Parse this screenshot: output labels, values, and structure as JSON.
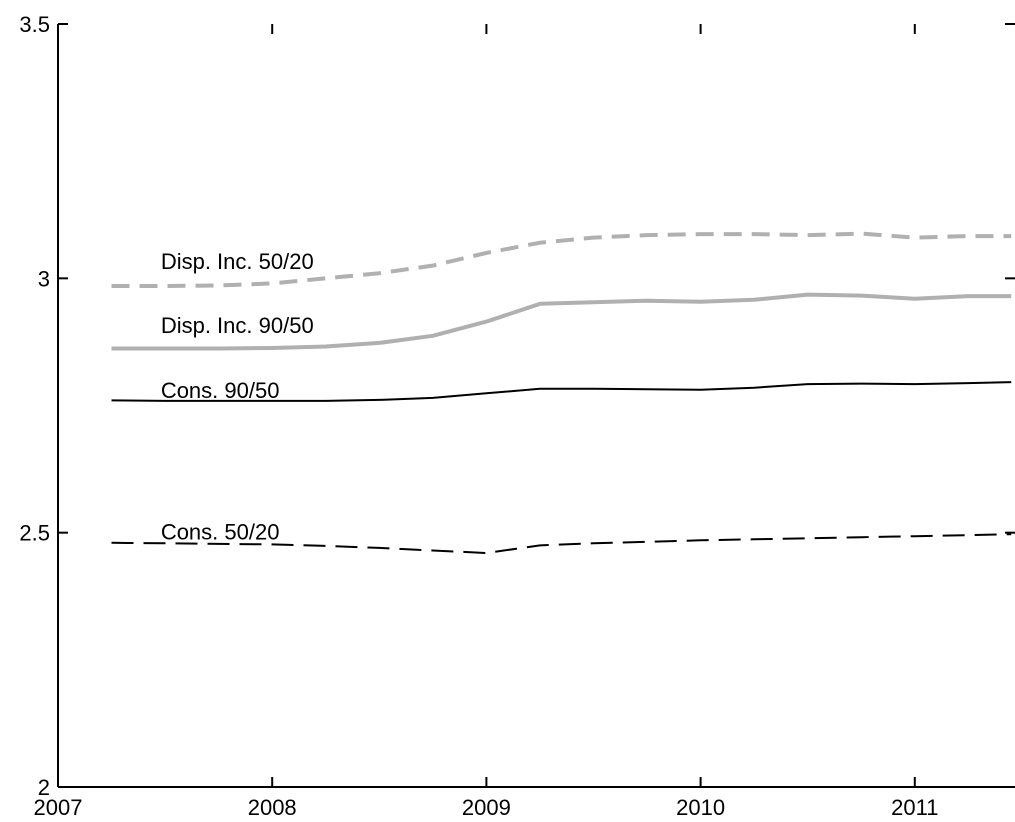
{
  "chart_data": {
    "type": "line",
    "title": "",
    "xlabel": "",
    "ylabel": "",
    "xlim": [
      2007,
      2011.45
    ],
    "ylim": [
      2,
      3.5
    ],
    "grid": false,
    "x_ticks": [
      "2007",
      "2008",
      "2009",
      "2010",
      "2011"
    ],
    "y_ticks": [
      "2",
      "2.5",
      "3",
      "3.5"
    ],
    "series": [
      {
        "name": "Disp. Inc. 50/20",
        "color": "#b0b0b0",
        "dash": "dashed",
        "x": [
          2007.25,
          2007.5,
          2007.75,
          2008.0,
          2008.25,
          2008.5,
          2008.75,
          2009.0,
          2009.25,
          2009.5,
          2009.75,
          2010.0,
          2010.25,
          2010.5,
          2010.75,
          2011.0,
          2011.25,
          2011.45
        ],
        "y": [
          2.985,
          2.985,
          2.986,
          2.99,
          3.0,
          3.01,
          3.025,
          3.05,
          3.07,
          3.08,
          3.085,
          3.087,
          3.087,
          3.085,
          3.088,
          3.08,
          3.083,
          3.083
        ]
      },
      {
        "name": "Disp. Inc. 90/50",
        "color": "#b0b0b0",
        "dash": "solid",
        "x": [
          2007.25,
          2007.5,
          2007.75,
          2008.0,
          2008.25,
          2008.5,
          2008.75,
          2009.0,
          2009.25,
          2009.5,
          2009.75,
          2010.0,
          2010.25,
          2010.5,
          2010.75,
          2011.0,
          2011.25,
          2011.45
        ],
        "y": [
          2.862,
          2.862,
          2.862,
          2.863,
          2.866,
          2.873,
          2.887,
          2.915,
          2.95,
          2.953,
          2.956,
          2.954,
          2.958,
          2.968,
          2.966,
          2.96,
          2.965,
          2.965
        ]
      },
      {
        "name": "Cons. 90/50",
        "color": "#000000",
        "dash": "solid",
        "x": [
          2007.25,
          2007.5,
          2007.75,
          2008.0,
          2008.25,
          2008.5,
          2008.75,
          2009.0,
          2009.25,
          2009.5,
          2009.75,
          2010.0,
          2010.25,
          2010.5,
          2010.75,
          2011.0,
          2011.25,
          2011.45
        ],
        "y": [
          2.76,
          2.759,
          2.759,
          2.759,
          2.759,
          2.761,
          2.765,
          2.774,
          2.783,
          2.783,
          2.782,
          2.781,
          2.785,
          2.792,
          2.793,
          2.792,
          2.794,
          2.796
        ]
      },
      {
        "name": "Cons. 50/20",
        "color": "#000000",
        "dash": "dashed",
        "x": [
          2007.25,
          2007.5,
          2007.75,
          2008.0,
          2008.25,
          2008.5,
          2008.75,
          2009.0,
          2009.25,
          2009.5,
          2009.75,
          2010.0,
          2010.25,
          2010.5,
          2010.75,
          2011.0,
          2011.25,
          2011.45
        ],
        "y": [
          2.48,
          2.479,
          2.478,
          2.477,
          2.474,
          2.47,
          2.465,
          2.46,
          2.475,
          2.479,
          2.482,
          2.485,
          2.487,
          2.489,
          2.491,
          2.493,
          2.495,
          2.497
        ]
      }
    ],
    "annotations": [
      {
        "text": "Disp. Inc. 50/20",
        "x": 2007.48,
        "y": 3.018
      },
      {
        "text": "Disp. Inc. 90/50",
        "x": 2007.48,
        "y": 2.893
      },
      {
        "text": "Cons. 90/50",
        "x": 2007.48,
        "y": 2.765
      },
      {
        "text": "Cons. 50/20",
        "x": 2007.48,
        "y": 2.487
      }
    ]
  }
}
